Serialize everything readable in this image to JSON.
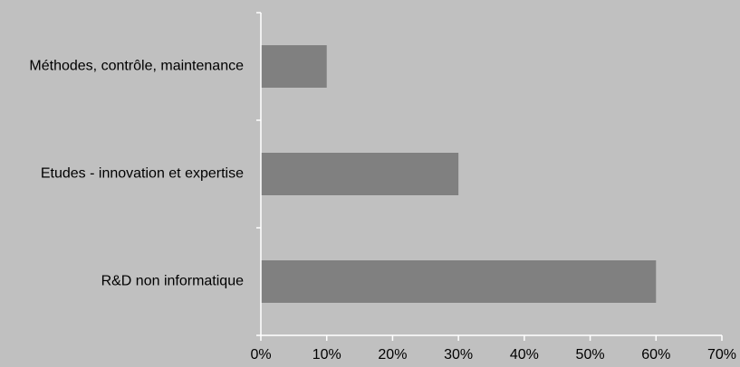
{
  "chart_data": {
    "type": "bar",
    "orientation": "horizontal",
    "categories": [
      "Méthodes, contrôle, maintenance",
      "Etudes - innovation et expertise",
      "R&D non informatique"
    ],
    "values": [
      10,
      30,
      60
    ],
    "value_unit": "%",
    "xlim": [
      0,
      70
    ],
    "x_ticks": [
      0,
      10,
      20,
      30,
      40,
      50,
      60,
      70
    ],
    "x_tick_labels": [
      "0%",
      "10%",
      "20%",
      "30%",
      "40%",
      "50%",
      "60%",
      "70%"
    ],
    "title": "",
    "xlabel": "",
    "ylabel": "",
    "grid": false,
    "legend": "none",
    "colors": {
      "background": "#c0c0c0",
      "bar": "#808080",
      "axis": "#ffffff",
      "text": "#000000"
    }
  }
}
